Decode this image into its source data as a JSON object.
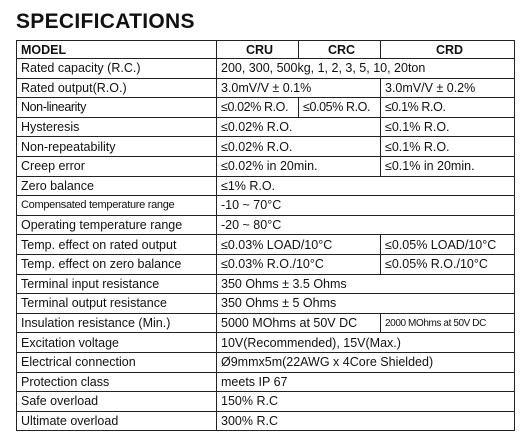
{
  "header": {
    "title": "SPECIFICATIONS"
  },
  "table": {
    "columns": [
      "MODEL",
      "CRU",
      "CRC",
      "CRD"
    ],
    "rows": [
      {
        "label": "Rated capacity (R.C.)",
        "cells": [
          "200, 300, 500kg, 1, 2, 3, 5, 10, 20ton"
        ]
      },
      {
        "label": "Rated output(R.O.)",
        "cells": [
          "3.0mV/V ± 0.1%",
          "3.0mV/V ± 0.2%"
        ]
      },
      {
        "label": "Non-linearity",
        "cells": [
          "≤0.02% R.O.",
          "≤0.05% R.O.",
          "≤0.1% R.O."
        ]
      },
      {
        "label": "Hysteresis",
        "cells": [
          "≤0.02% R.O.",
          "≤0.1% R.O."
        ]
      },
      {
        "label": "Non-repeatability",
        "cells": [
          "≤0.02% R.O.",
          "≤0.1% R.O."
        ]
      },
      {
        "label": "Creep error",
        "cells": [
          "≤0.02% in 20min.",
          "≤0.1% in 20min."
        ]
      },
      {
        "label": "Zero balance",
        "cells": [
          "≤1% R.O."
        ]
      },
      {
        "label": "Compensated temperature range",
        "cells": [
          "-10 ~ 70°C"
        ]
      },
      {
        "label": "Operating temperature range",
        "cells": [
          "-20 ~ 80°C"
        ]
      },
      {
        "label": "Temp. effect on rated output",
        "cells": [
          "≤0.03% LOAD/10°C",
          "≤0.05% LOAD/10°C"
        ]
      },
      {
        "label": "Temp. effect on zero balance",
        "cells": [
          "≤0.03% R.O./10°C",
          "≤0.05% R.O./10°C"
        ]
      },
      {
        "label": "Terminal input resistance",
        "cells": [
          "350 Ohms ± 3.5 Ohms"
        ]
      },
      {
        "label": "Terminal output resistance",
        "cells": [
          "350 Ohms ± 5 Ohms"
        ]
      },
      {
        "label": "Insulation resistance (Min.)",
        "cells": [
          "5000 MOhms at 50V DC",
          "2000 MOhms at 50V DC"
        ]
      },
      {
        "label": "Excitation voltage",
        "cells": [
          "10V(Recommended), 15V(Max.)"
        ]
      },
      {
        "label": "Electrical connection",
        "cells": [
          "Ø9mmx5m(22AWG x 4Core Shielded)"
        ]
      },
      {
        "label": "Protection class",
        "cells": [
          "meets IP 67"
        ]
      },
      {
        "label": "Safe overload",
        "cells": [
          "150% R.C"
        ]
      },
      {
        "label": "Ultimate overload",
        "cells": [
          "300% R.C"
        ]
      }
    ]
  }
}
